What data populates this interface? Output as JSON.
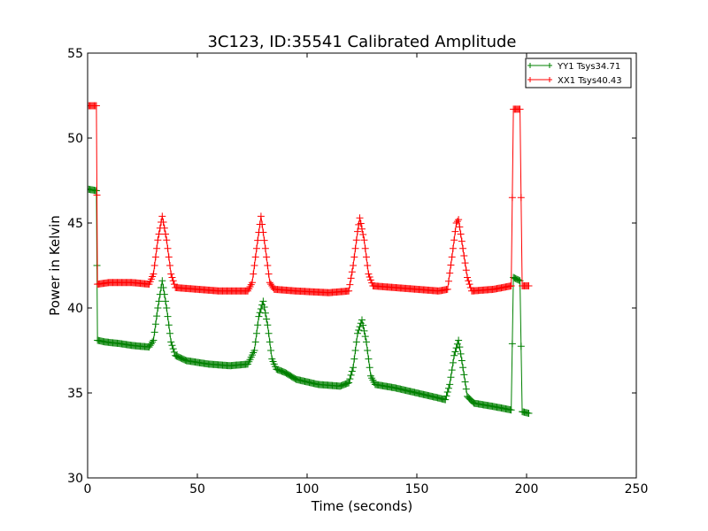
{
  "chart_data": {
    "type": "line",
    "title": "3C123, ID:35541 Calibrated Amplitude",
    "xlabel": "Time (seconds)",
    "ylabel": "Power in Kelvin",
    "xlim": [
      0,
      250
    ],
    "ylim": [
      30,
      55
    ],
    "xticks": [
      "0",
      "50",
      "100",
      "150",
      "200",
      "250"
    ],
    "yticks": [
      "30",
      "35",
      "40",
      "45",
      "50",
      "55"
    ],
    "grid": false,
    "legend_position": "top-right",
    "series": [
      {
        "name": "YY1 Tsys34.71",
        "color": "#008000",
        "marker": "+",
        "keypoints": [
          [
            0,
            47.0
          ],
          [
            4,
            46.9
          ],
          [
            4.5,
            38.1
          ],
          [
            8,
            38.0
          ],
          [
            15,
            37.9
          ],
          [
            20,
            37.8
          ],
          [
            28,
            37.7
          ],
          [
            30,
            38.1
          ],
          [
            32,
            40.0
          ],
          [
            34,
            41.6
          ],
          [
            36,
            40.0
          ],
          [
            38,
            38.0
          ],
          [
            40,
            37.2
          ],
          [
            45,
            36.9
          ],
          [
            55,
            36.7
          ],
          [
            65,
            36.6
          ],
          [
            73,
            36.7
          ],
          [
            76,
            37.5
          ],
          [
            78,
            39.5
          ],
          [
            80,
            40.4
          ],
          [
            82,
            39.0
          ],
          [
            84,
            37.0
          ],
          [
            86,
            36.4
          ],
          [
            90,
            36.2
          ],
          [
            95,
            35.8
          ],
          [
            105,
            35.5
          ],
          [
            115,
            35.4
          ],
          [
            119,
            35.6
          ],
          [
            121,
            36.5
          ],
          [
            123,
            38.5
          ],
          [
            125,
            39.3
          ],
          [
            127,
            38.0
          ],
          [
            129,
            36.0
          ],
          [
            131,
            35.5
          ],
          [
            140,
            35.3
          ],
          [
            150,
            35.0
          ],
          [
            160,
            34.7
          ],
          [
            163,
            34.6
          ],
          [
            165,
            35.5
          ],
          [
            167,
            37.2
          ],
          [
            169,
            38.1
          ],
          [
            171,
            36.5
          ],
          [
            173,
            34.8
          ],
          [
            176,
            34.4
          ],
          [
            185,
            34.2
          ],
          [
            193,
            34.0
          ],
          [
            194,
            41.8
          ],
          [
            197,
            41.6
          ],
          [
            198,
            33.9
          ],
          [
            201,
            33.8
          ]
        ],
        "step_indices": [
          0,
          3,
          7,
          10,
          13,
          16,
          19,
          22,
          25,
          28,
          31,
          34,
          37,
          40,
          43,
          46,
          48
        ]
      },
      {
        "name": "XX1 Tsys40.43",
        "color": "#ff0000",
        "marker": "+",
        "keypoints": [
          [
            0,
            51.9
          ],
          [
            4,
            51.9
          ],
          [
            4.5,
            41.4
          ],
          [
            10,
            41.5
          ],
          [
            20,
            41.5
          ],
          [
            28,
            41.4
          ],
          [
            30,
            42.0
          ],
          [
            32,
            44.0
          ],
          [
            34,
            45.4
          ],
          [
            36,
            44.0
          ],
          [
            38,
            42.0
          ],
          [
            40,
            41.2
          ],
          [
            50,
            41.1
          ],
          [
            60,
            41.0
          ],
          [
            73,
            41.0
          ],
          [
            75,
            41.5
          ],
          [
            77,
            43.5
          ],
          [
            79,
            45.4
          ],
          [
            81,
            43.5
          ],
          [
            83,
            41.5
          ],
          [
            85,
            41.1
          ],
          [
            95,
            41.0
          ],
          [
            110,
            40.9
          ],
          [
            119,
            41.0
          ],
          [
            121,
            42.5
          ],
          [
            123,
            44.5
          ],
          [
            124,
            45.3
          ],
          [
            126,
            44.0
          ],
          [
            128,
            42.0
          ],
          [
            130,
            41.3
          ],
          [
            140,
            41.2
          ],
          [
            150,
            41.1
          ],
          [
            160,
            41.0
          ],
          [
            164,
            41.1
          ],
          [
            166,
            43.0
          ],
          [
            168,
            45.0
          ],
          [
            169,
            45.2
          ],
          [
            171,
            43.5
          ],
          [
            173,
            41.8
          ],
          [
            175,
            41.0
          ],
          [
            185,
            41.1
          ],
          [
            193,
            41.3
          ],
          [
            194,
            51.7
          ],
          [
            197,
            51.7
          ],
          [
            198,
            41.3
          ],
          [
            201,
            41.3
          ]
        ]
      }
    ]
  }
}
